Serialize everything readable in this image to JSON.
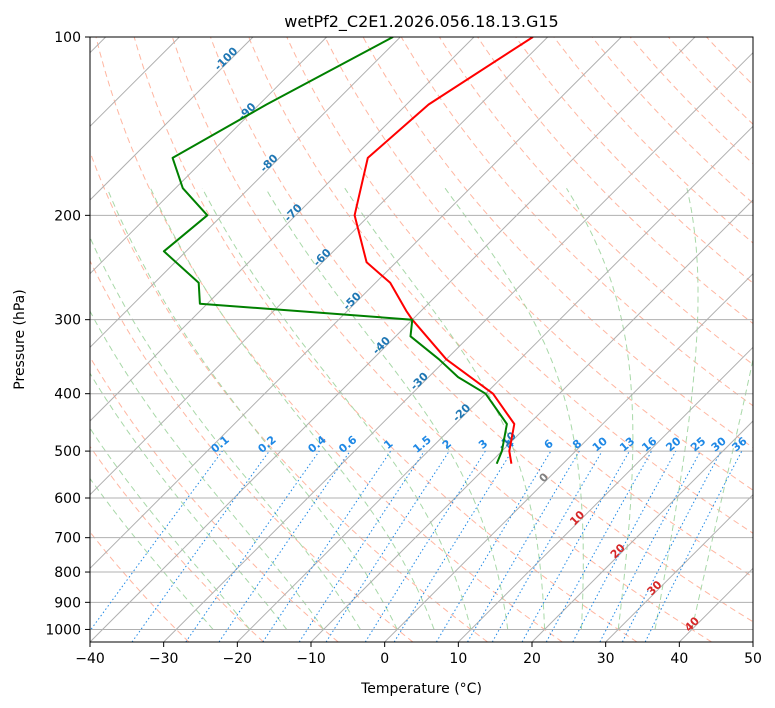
{
  "chart_data": {
    "type": "line",
    "title": "wetPf2_C2E1.2026.056.18.13.G15",
    "xlabel": "Temperature (°C)",
    "ylabel": "Pressure (hPa)",
    "xlim": [
      -40,
      50
    ],
    "ylim": [
      1050,
      100
    ],
    "y_scale": "log",
    "skew": "45 degree isotherms",
    "grid": true,
    "x_ticks": [
      "−40",
      "−30",
      "−20",
      "−10",
      "0",
      "10",
      "20",
      "30",
      "40",
      "50"
    ],
    "x_tick_values": [
      -40,
      -30,
      -20,
      -10,
      0,
      10,
      20,
      30,
      40,
      50
    ],
    "y_ticks": [
      "100",
      "200",
      "300",
      "400",
      "500",
      "600",
      "700",
      "800",
      "900",
      "1000"
    ],
    "y_tick_values": [
      100,
      200,
      300,
      400,
      500,
      600,
      700,
      800,
      900,
      1000
    ],
    "series": [
      {
        "color": "#ff0000",
        "role": "temperature",
        "points": [
          [
            -62.0,
            100
          ],
          [
            -67.0,
            130
          ],
          [
            -68.0,
            160
          ],
          [
            -62.0,
            200
          ],
          [
            -54.0,
            240
          ],
          [
            -48.0,
            260
          ],
          [
            -42.0,
            290
          ],
          [
            -40.0,
            300
          ],
          [
            -30.0,
            350
          ],
          [
            -19.0,
            400
          ],
          [
            -12.0,
            450
          ],
          [
            -9.0,
            500
          ],
          [
            -7.0,
            525
          ]
        ]
      },
      {
        "color": "#008000",
        "role": "dewpoint",
        "points": [
          [
            -81.0,
            100
          ],
          [
            -89.0,
            130
          ],
          [
            -94.5,
            160
          ],
          [
            -89.0,
            180
          ],
          [
            -82.0,
            200
          ],
          [
            -83.0,
            230
          ],
          [
            -74.0,
            260
          ],
          [
            -71.0,
            282
          ],
          [
            -40.0,
            300
          ],
          [
            -38.0,
            320
          ],
          [
            -31.0,
            350
          ],
          [
            -26.0,
            375
          ],
          [
            -20.0,
            400
          ],
          [
            -13.0,
            450
          ],
          [
            -10.0,
            500
          ],
          [
            -9.0,
            525
          ]
        ]
      }
    ],
    "dry_adiabat_labels": [
      "-100",
      "-90",
      "-80",
      "-70",
      "-60",
      "-50",
      "-40",
      "-30",
      "-20",
      "-10",
      "0",
      "10",
      "20",
      "30",
      "40"
    ],
    "mixing_ratio_labels": [
      "0.1",
      "0.2",
      "0.4",
      "0.6",
      "1",
      "1.5",
      "2",
      "3",
      "4",
      "6",
      "8",
      "10",
      "13",
      "16",
      "20",
      "25",
      "30",
      "36"
    ],
    "colors": {
      "isotherm": "#b0b0b0",
      "isobar": "#b0b0b0",
      "dry_adiabat": "#ffb6a1",
      "moist_adiabat": "#a8d8a8",
      "mixing_ratio": "#1e88e5",
      "dry_adiabat_label_cold": "#1f77b4",
      "dry_adiabat_label_zero": "#808080",
      "dry_adiabat_label_warm": "#d62728"
    }
  }
}
